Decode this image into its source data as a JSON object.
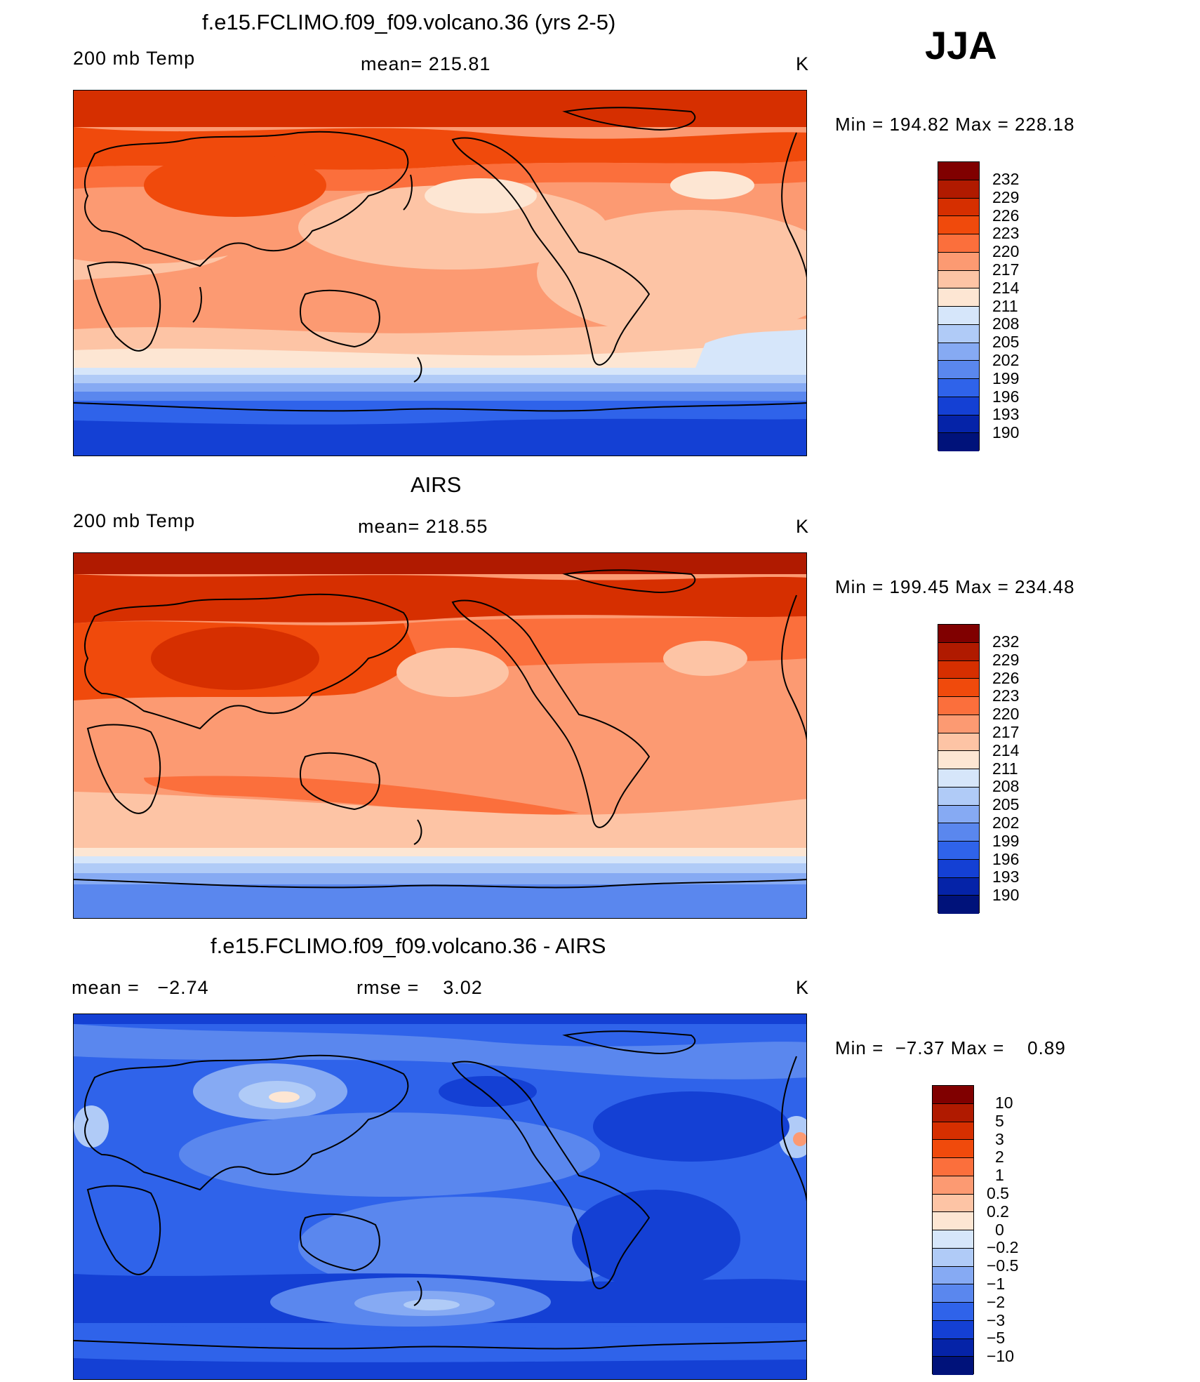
{
  "season": "JJA",
  "panels": [
    {
      "title": "f.e15.FCLIMO.f09_f09.volcano.36 (yrs 2-5)",
      "left_label": "200 mb Temp",
      "center_label": "mean= 215.81",
      "units": "K",
      "minmax": "Min = 194.82 Max = 228.18",
      "colorbar_labels": [
        "232",
        "229",
        "226",
        "223",
        "220",
        "217",
        "214",
        "211",
        "208",
        "205",
        "202",
        "199",
        "196",
        "193",
        "190"
      ]
    },
    {
      "title": "AIRS",
      "left_label": "200 mb Temp",
      "center_label": "mean= 218.55",
      "units": "K",
      "minmax": "Min = 199.45 Max = 234.48",
      "colorbar_labels": [
        "232",
        "229",
        "226",
        "223",
        "220",
        "217",
        "214",
        "211",
        "208",
        "205",
        "202",
        "199",
        "196",
        "193",
        "190"
      ]
    },
    {
      "title": "f.e15.FCLIMO.f09_f09.volcano.36 - AIRS",
      "left_label": "mean =   −2.74",
      "center_label": "rmse =    3.02",
      "units": "K",
      "minmax": "Min =  −7.37 Max =    0.89",
      "colorbar_labels": [
        "10",
        "5",
        "3",
        "2",
        "1",
        "0.5",
        "0.2",
        "0",
        "−0.2",
        "−0.5",
        "−1",
        "−2",
        "−3",
        "−5",
        "−10"
      ]
    }
  ],
  "colors": {
    "scale": [
      "#800000",
      "#b01a00",
      "#d62f00",
      "#f04a0c",
      "#fb6f3c",
      "#fc9a72",
      "#fdc4a5",
      "#fde6d3",
      "#d6e6fa",
      "#b0cbf7",
      "#86aaf3",
      "#5a87ee",
      "#2f63ea",
      "#1440d4",
      "#0523a8",
      "#00127a"
    ],
    "coast": "#000000"
  }
}
